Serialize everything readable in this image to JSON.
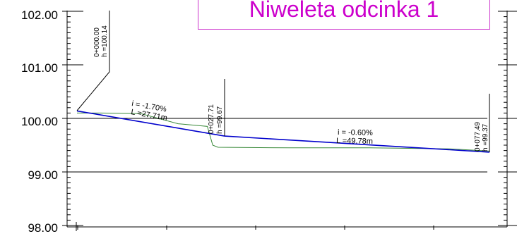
{
  "title": "Niweleta odcinka 1",
  "colors": {
    "grade_line": "#0000cc",
    "terrain_line": "#3a8a3a",
    "axis": "#000000",
    "title": "#cc00cc"
  },
  "y_axis": {
    "ylim": [
      98.0,
      102.0
    ],
    "tick_labels": [
      "102.00",
      "101.00",
      "100.00",
      "99.00",
      "98.00"
    ]
  },
  "stations": [
    {
      "label": "0+000.00",
      "h_label": "h =100.14"
    },
    {
      "label": "0+027.71",
      "h_label": "h =99.67"
    },
    {
      "label": "0+077.49",
      "h_label": "h =99.37"
    }
  ],
  "segments": [
    {
      "grade": "i = -1.70%",
      "length": "L =27.71m"
    },
    {
      "grade": "i = -0.60%",
      "length": "L =49.78m"
    }
  ],
  "chart_data": {
    "type": "line",
    "title": "Niweleta odcinka 1",
    "xlabel": "",
    "ylabel": "",
    "ylim": [
      98.0,
      102.0
    ],
    "grid": false,
    "series": [
      {
        "x": [
          0.0,
          27.71,
          77.49
        ],
        "values": [
          100.14,
          99.67,
          99.37
        ]
      },
      {
        "x": [
          0.0,
          4.5,
          12.0,
          19.0,
          24.5,
          25.5,
          26.5,
          40.0,
          55.0,
          70.0,
          77.49
        ],
        "values": [
          100.1,
          100.1,
          100.09,
          99.9,
          99.85,
          99.5,
          99.46,
          99.45,
          99.45,
          99.43,
          99.39
        ]
      }
    ]
  }
}
